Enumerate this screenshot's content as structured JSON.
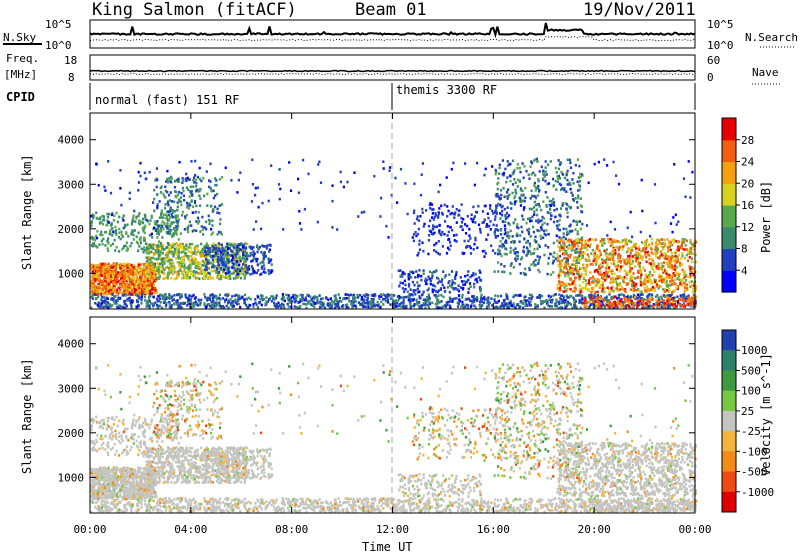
{
  "title": {
    "radar": "King Salmon (fitACF)",
    "beam": "Beam 01",
    "date": "19/Nov/2011"
  },
  "summary": {
    "nsky": {
      "label": "N.Sky",
      "ticks": [
        "10^5",
        "10^0"
      ]
    },
    "nsearch": {
      "label": "N.Search",
      "ticks": [
        "10^5",
        "10^0"
      ]
    },
    "freq": {
      "label_line1": "Freq.",
      "label_line2": "[MHz]",
      "ticks": [
        "18",
        "8"
      ]
    },
    "nave": {
      "label": "Nave",
      "ticks": [
        "60",
        "0"
      ]
    },
    "cpid": {
      "label": "CPID",
      "segments": [
        {
          "name": "normal (fast) 151 RF",
          "start_hour": 0
        },
        {
          "name": "themis 3300 RF",
          "start_hour": 12
        }
      ]
    }
  },
  "chart_data": [
    {
      "type": "heatmap",
      "panel": "power",
      "ylabel": "Slant Range [km]",
      "ylim": [
        200,
        4600
      ],
      "yticks": [
        1000,
        2000,
        3000,
        4000
      ],
      "x_range_hours": [
        0,
        24
      ],
      "colorbar": {
        "label": "Power [dB]",
        "ticks": [
          "28",
          "24",
          "20",
          "16",
          "12",
          "8",
          "4"
        ],
        "tick_values": [
          28,
          24,
          20,
          16,
          12,
          8,
          4
        ],
        "range": [
          0,
          32
        ],
        "stops": [
          "#0000ff",
          "#2040c0",
          "#3c8a6e",
          "#5aa84e",
          "#d6d21e",
          "#f4a010",
          "#f06010",
          "#e80000"
        ]
      }
    },
    {
      "type": "heatmap",
      "panel": "velocity",
      "ylabel": "Slant Range [km]",
      "ylim": [
        200,
        4600
      ],
      "yticks": [
        1000,
        2000,
        3000,
        4000
      ],
      "x_range_hours": [
        0,
        24
      ],
      "colorbar": {
        "label": "Velocity [m s^-1]",
        "ticks": [
          "1000",
          "500",
          "100",
          "25",
          "-25",
          "-100",
          "-500",
          "-1000"
        ],
        "levels": [
          {
            "color": "#2040b0"
          },
          {
            "color": "#2e7f6a"
          },
          {
            "color": "#3e9a40"
          },
          {
            "color": "#78c844"
          },
          {
            "color": "#c4c4c0"
          },
          {
            "color": "#f4b440"
          },
          {
            "color": "#f48a18"
          },
          {
            "color": "#f04a10"
          },
          {
            "color": "#e00000"
          }
        ]
      }
    }
  ],
  "xaxis": {
    "label": "Time UT",
    "ticks": [
      "00:00",
      "04:00",
      "08:00",
      "12:00",
      "16:00",
      "20:00",
      "00:00"
    ],
    "tick_hours": [
      0,
      4,
      8,
      12,
      16,
      20,
      24
    ]
  }
}
